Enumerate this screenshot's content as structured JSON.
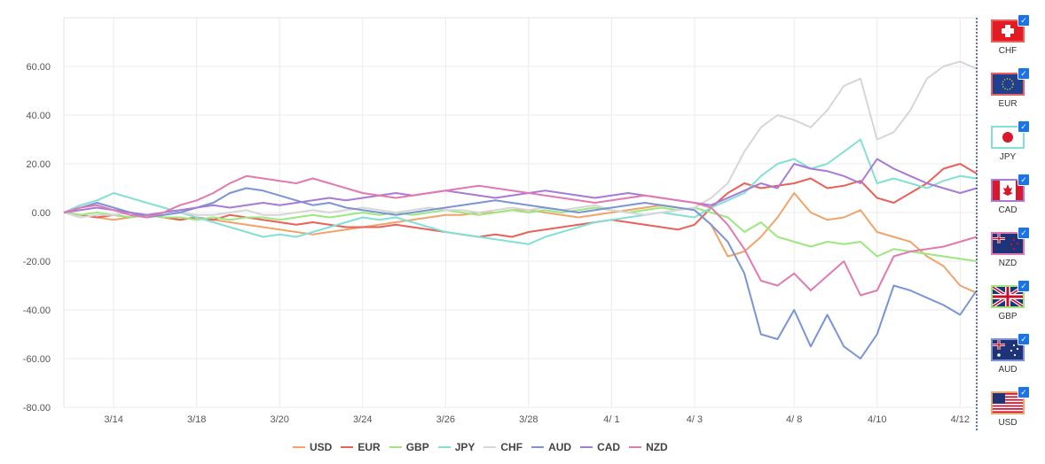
{
  "chart_data": {
    "type": "line",
    "ylim": [
      -80,
      80
    ],
    "yticks": [
      "60.00",
      "40.00",
      "20.00",
      "0.00",
      "-20.00",
      "-40.00",
      "-60.00",
      "-80.00"
    ],
    "yvalues": [
      60,
      40,
      20,
      0,
      -20,
      -40,
      -60,
      -80
    ],
    "xticks": [
      "3/14",
      "3/18",
      "3/20",
      "3/24",
      "3/26",
      "3/28",
      "4/ 1",
      "4/ 3",
      "4/ 8",
      "4/10",
      "4/12"
    ],
    "xtick_index": [
      3,
      8,
      13,
      18,
      23,
      28,
      33,
      38,
      44,
      49,
      54
    ],
    "n_points": 56,
    "grid": true,
    "legend_position": "bottom",
    "series": [
      {
        "name": "USD",
        "color": "#f0a46b",
        "values": [
          0,
          -1,
          -2,
          -3,
          -2,
          -1,
          -2,
          -3,
          -2,
          -3,
          -4,
          -5,
          -6,
          -7,
          -8,
          -9,
          -8,
          -7,
          -6,
          -5,
          -4,
          -3,
          -2,
          -1,
          -1,
          0,
          0,
          1,
          1,
          0,
          -1,
          -2,
          -1,
          0,
          1,
          2,
          3,
          2,
          1,
          -5,
          -18,
          -16,
          -10,
          -2,
          8,
          0,
          -3,
          -2,
          1,
          -8,
          -10,
          -12,
          -18,
          -22,
          -30,
          -33
        ]
      },
      {
        "name": "EUR",
        "color": "#e8615a",
        "values": [
          0,
          -1,
          -2,
          -1,
          -2,
          -1,
          -2,
          -3,
          -2,
          -3,
          -1,
          -2,
          -3,
          -4,
          -5,
          -4,
          -5,
          -6,
          -6,
          -6,
          -5,
          -6,
          -7,
          -8,
          -9,
          -10,
          -9,
          -10,
          -8,
          -7,
          -6,
          -5,
          -4,
          -3,
          -4,
          -5,
          -6,
          -7,
          -5,
          2,
          8,
          12,
          10,
          11,
          12,
          14,
          10,
          11,
          13,
          6,
          4,
          8,
          12,
          18,
          20,
          16
        ]
      },
      {
        "name": "GBP",
        "color": "#9be87f",
        "values": [
          0,
          -1,
          0,
          -1,
          -2,
          -1,
          -2,
          -2,
          -3,
          -2,
          -3,
          -2,
          -2,
          -3,
          -2,
          -1,
          -2,
          -1,
          0,
          -1,
          0,
          -1,
          0,
          1,
          0,
          -1,
          0,
          1,
          0,
          1,
          0,
          1,
          2,
          1,
          0,
          1,
          2,
          1,
          2,
          0,
          -2,
          -8,
          -4,
          -10,
          -12,
          -14,
          -12,
          -13,
          -12,
          -18,
          -15,
          -16,
          -17,
          -18,
          -19,
          -20
        ]
      },
      {
        "name": "JPY",
        "color": "#82e0d4",
        "values": [
          0,
          3,
          5,
          8,
          6,
          4,
          2,
          0,
          -2,
          -4,
          -6,
          -8,
          -10,
          -9,
          -10,
          -8,
          -6,
          -4,
          -2,
          -3,
          -2,
          -4,
          -6,
          -8,
          -9,
          -10,
          -11,
          -12,
          -13,
          -10,
          -8,
          -6,
          -4,
          -3,
          -2,
          -1,
          0,
          -1,
          -2,
          2,
          5,
          8,
          15,
          20,
          22,
          18,
          20,
          25,
          30,
          12,
          14,
          12,
          10,
          13,
          15,
          14
        ]
      },
      {
        "name": "CHF",
        "color": "#d6d6d6",
        "values": [
          0,
          -2,
          -1,
          -1,
          0,
          -1,
          -1,
          0,
          -1,
          -1,
          0,
          1,
          -1,
          -1,
          0,
          1,
          0,
          1,
          2,
          1,
          0,
          1,
          2,
          1,
          1,
          0,
          1,
          2,
          1,
          2,
          1,
          2,
          3,
          1,
          0,
          -1,
          0,
          1,
          2,
          6,
          12,
          25,
          35,
          40,
          38,
          35,
          42,
          52,
          55,
          30,
          33,
          42,
          55,
          60,
          62,
          59
        ]
      },
      {
        "name": "AUD",
        "color": "#7b94d4",
        "values": [
          0,
          2,
          4,
          2,
          0,
          -2,
          -1,
          0,
          2,
          4,
          8,
          10,
          9,
          7,
          5,
          3,
          4,
          2,
          1,
          0,
          -1,
          0,
          1,
          2,
          3,
          4,
          5,
          4,
          3,
          2,
          1,
          0,
          1,
          2,
          3,
          4,
          3,
          2,
          1,
          -5,
          -12,
          -25,
          -50,
          -52,
          -40,
          -55,
          -42,
          -55,
          -60,
          -50,
          -30,
          -32,
          -35,
          -38,
          -42,
          -32
        ]
      },
      {
        "name": "CAD",
        "color": "#a87ad6",
        "values": [
          0,
          1,
          2,
          1,
          0,
          -1,
          0,
          1,
          2,
          3,
          2,
          3,
          4,
          3,
          4,
          5,
          6,
          5,
          6,
          7,
          8,
          7,
          8,
          9,
          8,
          7,
          6,
          7,
          8,
          9,
          8,
          7,
          6,
          7,
          8,
          7,
          6,
          5,
          4,
          3,
          6,
          9,
          12,
          10,
          20,
          18,
          17,
          15,
          12,
          22,
          18,
          15,
          12,
          10,
          8,
          10
        ]
      },
      {
        "name": "NZD",
        "color": "#e07ab0",
        "values": [
          0,
          2,
          3,
          1,
          -1,
          -2,
          0,
          3,
          5,
          8,
          12,
          15,
          14,
          13,
          12,
          14,
          12,
          10,
          8,
          7,
          6,
          7,
          8,
          9,
          10,
          11,
          10,
          9,
          8,
          7,
          6,
          5,
          4,
          5,
          6,
          7,
          6,
          5,
          4,
          2,
          -5,
          -15,
          -28,
          -30,
          -25,
          -32,
          -26,
          -20,
          -34,
          -32,
          -18,
          -16,
          -15,
          -14,
          -12,
          -10
        ]
      }
    ]
  },
  "legend": [
    {
      "label": "USD",
      "color": "#f0a46b"
    },
    {
      "label": "EUR",
      "color": "#e8615a"
    },
    {
      "label": "GBP",
      "color": "#9be87f"
    },
    {
      "label": "JPY",
      "color": "#82e0d4"
    },
    {
      "label": "CHF",
      "color": "#d6d6d6"
    },
    {
      "label": "AUD",
      "color": "#7b94d4"
    },
    {
      "label": "CAD",
      "color": "#a87ad6"
    },
    {
      "label": "NZD",
      "color": "#e07ab0"
    }
  ],
  "flags": [
    {
      "label": "CHF",
      "border": "#e8615a",
      "icon": "swiss-flag-icon"
    },
    {
      "label": "EUR",
      "border": "#e8615a",
      "icon": "eu-flag-icon"
    },
    {
      "label": "JPY",
      "border": "#82e0d4",
      "icon": "japan-flag-icon"
    },
    {
      "label": "CAD",
      "border": "#a87ad6",
      "icon": "canada-flag-icon"
    },
    {
      "label": "NZD",
      "border": "#e07ab0",
      "icon": "new-zealand-flag-icon"
    },
    {
      "label": "GBP",
      "border": "#9be87f",
      "icon": "uk-flag-icon"
    },
    {
      "label": "AUD",
      "border": "#7b94d4",
      "icon": "australia-flag-icon"
    },
    {
      "label": "USD",
      "border": "#f0a46b",
      "icon": "us-flag-icon"
    }
  ],
  "check_glyph": "✓"
}
